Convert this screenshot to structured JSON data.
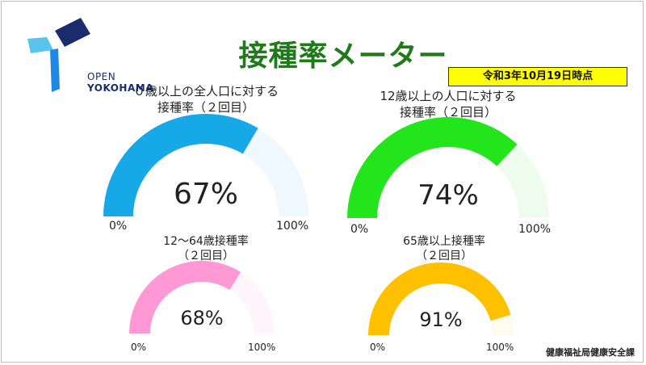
{
  "title": "接種率メーター",
  "date_badge": "令和3年10月19日時点",
  "logo": {
    "line1": "OPEN",
    "line2": "YOKOHAMA",
    "color_dark": "#1a2c6e",
    "color_blue": "#1e88e5",
    "color_light": "#58c4ee"
  },
  "department": "健康福祉局健康安全課",
  "gauges": [
    {
      "label1": "０歳以上の全人口に対する",
      "label2": "接種率（２回目）",
      "value_text": "67%",
      "value": 67,
      "min": "0%",
      "max": "100%",
      "color": "#17a8e8",
      "track": "#eef8fe"
    },
    {
      "label1": "12歳以上の人口に対する",
      "label2": "接種率（２回目）",
      "value_text": "74%",
      "value": 74,
      "min": "0%",
      "max": "100%",
      "color": "#22e51c",
      "track": "#eefcee"
    },
    {
      "label1": "12～64歳接種率",
      "label2": "（２回目）",
      "value_text": "68%",
      "value": 68,
      "min": "0%",
      "max": "100%",
      "color": "#ff99d5",
      "track": "#fff5fa"
    },
    {
      "label1": "65歳以上接種率",
      "label2": "（２回目）",
      "value_text": "91%",
      "value": 91,
      "min": "0%",
      "max": "100%",
      "color": "#ffc000",
      "track": "#fffbee"
    }
  ]
}
